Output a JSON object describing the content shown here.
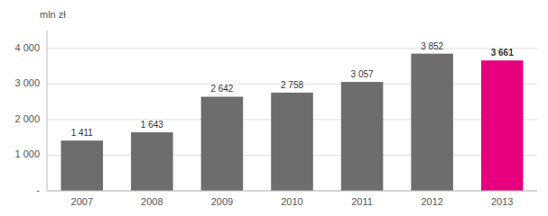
{
  "chart_data": {
    "type": "bar",
    "ylabel": "mln zł",
    "categories": [
      "2007",
      "2008",
      "2009",
      "2010",
      "2011",
      "2012",
      "2013"
    ],
    "values": [
      1411,
      1643,
      2642,
      2758,
      3057,
      3852,
      3661
    ],
    "value_labels": [
      "1 411",
      "1 643",
      "2 642",
      "2 758",
      "3 057",
      "3 852",
      "3 661"
    ],
    "colors": [
      "#6d6d6d",
      "#6d6d6d",
      "#6d6d6d",
      "#6d6d6d",
      "#6d6d6d",
      "#6d6d6d",
      "#e6007e"
    ],
    "data_labels": true,
    "ylim": [
      0,
      4500
    ],
    "yticks": [
      {
        "value": 0,
        "label": "-"
      },
      {
        "value": 1000,
        "label": "1 000"
      },
      {
        "value": 2000,
        "label": "2 000"
      },
      {
        "value": 3000,
        "label": "3 000"
      },
      {
        "value": 4000,
        "label": "4 000"
      }
    ],
    "grid": true
  }
}
